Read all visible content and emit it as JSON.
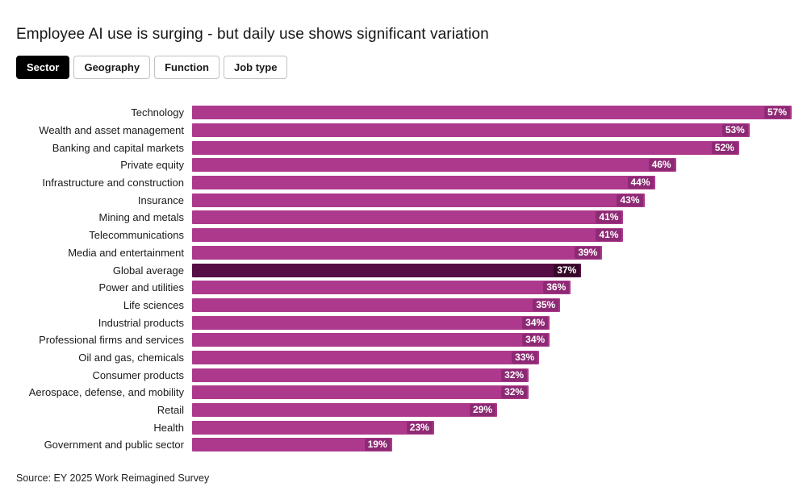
{
  "title": "Employee AI use is surging - but daily use shows significant variation",
  "tabs": [
    {
      "label": "Sector",
      "active": true
    },
    {
      "label": "Geography",
      "active": false
    },
    {
      "label": "Function",
      "active": false
    },
    {
      "label": "Job type",
      "active": false
    }
  ],
  "chart_data": {
    "type": "bar",
    "orientation": "horizontal",
    "categories": [
      "Technology",
      "Wealth and asset management",
      "Banking and capital markets",
      "Private equity",
      "Infrastructure and construction",
      "Insurance",
      "Mining and metals",
      "Telecommunications",
      "Media and entertainment",
      "Global average",
      "Power and utilities",
      "Life sciences",
      "Industrial products",
      "Professional firms and services",
      "Oil and gas, chemicals",
      "Consumer products",
      "Aerospace, defense, and mobility",
      "Retail",
      "Health",
      "Government and public sector"
    ],
    "values": [
      57,
      53,
      52,
      46,
      44,
      43,
      41,
      41,
      39,
      37,
      36,
      35,
      34,
      34,
      33,
      32,
      32,
      29,
      23,
      19
    ],
    "value_suffix": "%",
    "highlight_category": "Global average",
    "axis_max": 57,
    "grid": false,
    "legend": "none",
    "colors": {
      "bar": "#ad398d",
      "bar_badge": "#8e2a74",
      "highlight_bar": "#570d46",
      "highlight_badge": "#350829"
    }
  },
  "source": "Source: EY 2025 Work Reimagined Survey"
}
